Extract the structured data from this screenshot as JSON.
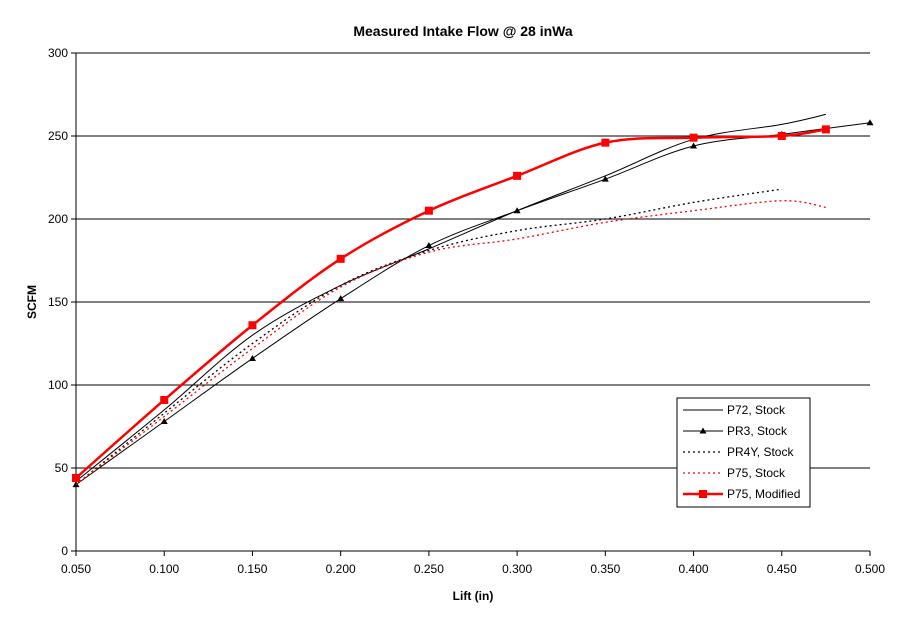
{
  "chart_data": {
    "type": "line",
    "title": "Measured Intake Flow @ 28 inWa",
    "xlabel": "Lift (in)",
    "ylabel": "SCFM",
    "xlim": [
      0.05,
      0.5
    ],
    "ylim": [
      0,
      300
    ],
    "xticks": [
      "0.050",
      "0.100",
      "0.150",
      "0.200",
      "0.250",
      "0.300",
      "0.350",
      "0.400",
      "0.450",
      "0.500"
    ],
    "yticks": [
      "0",
      "50",
      "100",
      "150",
      "200",
      "250",
      "300"
    ],
    "grid": "horizontal",
    "legend_position": "lower-right",
    "series": [
      {
        "name": "P72, Stock",
        "color": "#000000",
        "style": "solid",
        "marker": "none",
        "x": [
          0.05,
          0.1,
          0.15,
          0.2,
          0.25,
          0.3,
          0.35,
          0.4,
          0.45,
          0.475
        ],
        "y": [
          42,
          85,
          130,
          160,
          182,
          205,
          226,
          248,
          257,
          263
        ]
      },
      {
        "name": "PR3, Stock",
        "color": "#000000",
        "style": "solid",
        "marker": "triangle",
        "x": [
          0.05,
          0.1,
          0.15,
          0.2,
          0.25,
          0.3,
          0.35,
          0.4,
          0.45,
          0.5
        ],
        "y": [
          40,
          78,
          116,
          152,
          184,
          205,
          224,
          244,
          251,
          258
        ]
      },
      {
        "name": "PR4Y, Stock",
        "color": "#000000",
        "style": "dotted",
        "marker": "none",
        "x": [
          0.05,
          0.1,
          0.15,
          0.2,
          0.25,
          0.3,
          0.35,
          0.4,
          0.45
        ],
        "y": [
          40,
          83,
          125,
          160,
          181,
          193,
          200,
          210,
          218
        ]
      },
      {
        "name": "P75, Stock",
        "color": "#ff0000",
        "style": "dotted",
        "marker": "none",
        "x": [
          0.05,
          0.1,
          0.15,
          0.2,
          0.25,
          0.3,
          0.35,
          0.4,
          0.45,
          0.475
        ],
        "y": [
          40,
          81,
          122,
          159,
          180,
          188,
          198,
          205,
          211,
          207
        ]
      },
      {
        "name": "P75, Modified",
        "color": "#ff0000",
        "style": "thick",
        "marker": "square",
        "x": [
          0.05,
          0.1,
          0.15,
          0.2,
          0.25,
          0.3,
          0.35,
          0.4,
          0.45,
          0.475
        ],
        "y": [
          44,
          91,
          136,
          176,
          205,
          226,
          246,
          249,
          250,
          254
        ]
      }
    ]
  }
}
